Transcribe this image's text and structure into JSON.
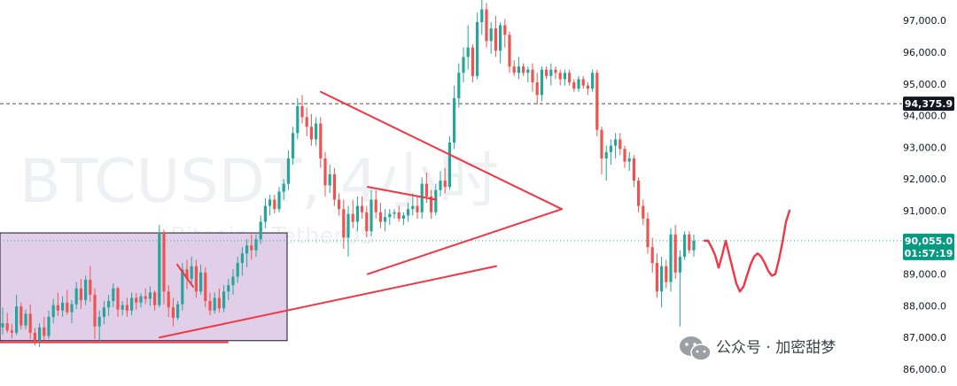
{
  "chart_data": {
    "type": "candlestick",
    "symbol_watermark": "BTCUSDT, 4小时",
    "symbol_subtitle": "Bitcoin / TetherUS",
    "y_axis": {
      "ticks": [
        "97,000.0",
        "96,000.0",
        "95,000.0",
        "94,000.0",
        "93,000.0",
        "92,000.0",
        "91,000.0",
        "89,000.0",
        "88,000.0",
        "87,000.0",
        "86,000.0"
      ],
      "range": [
        85750,
        97600
      ]
    },
    "levels": [
      {
        "label": "94,375.9",
        "value": 94375.9,
        "style": "dashed",
        "color": "#131722"
      },
      {
        "label": "90,055.0",
        "sub_label": "01:57:19",
        "value": 90055.0,
        "style": "dotted",
        "color": "#22ab94"
      }
    ],
    "candles_ohlc": [
      [
        87320,
        87950,
        87100,
        87450
      ],
      [
        87450,
        87780,
        87150,
        87220
      ],
      [
        87220,
        87420,
        86980,
        87150
      ],
      [
        87150,
        88350,
        87080,
        87980
      ],
      [
        87980,
        88100,
        87250,
        87380
      ],
      [
        87380,
        87880,
        87250,
        87750
      ],
      [
        87750,
        88050,
        86950,
        87150
      ],
      [
        87150,
        87300,
        86750,
        86900
      ],
      [
        86900,
        87450,
        86700,
        87320
      ],
      [
        87320,
        87650,
        86900,
        87050
      ],
      [
        87050,
        87850,
        86950,
        87650
      ],
      [
        87650,
        88220,
        87450,
        88020
      ],
      [
        88020,
        88420,
        87680,
        87850
      ],
      [
        87850,
        88300,
        87650,
        88100
      ],
      [
        88100,
        88500,
        87720,
        87800
      ],
      [
        87800,
        88180,
        87450,
        88050
      ],
      [
        88050,
        88750,
        87900,
        88550
      ],
      [
        88550,
        88850,
        87900,
        88180
      ],
      [
        88180,
        88950,
        88020,
        88820
      ],
      [
        88820,
        89250,
        88120,
        88350
      ],
      [
        88350,
        88550,
        86950,
        87350
      ],
      [
        87350,
        87850,
        86880,
        87650
      ],
      [
        87650,
        88150,
        87420,
        87950
      ],
      [
        87950,
        88350,
        87680,
        88150
      ],
      [
        88150,
        88720,
        87950,
        88550
      ],
      [
        88550,
        88600,
        87650,
        87880
      ],
      [
        87880,
        88150,
        87700,
        88020
      ],
      [
        88020,
        88250,
        87650,
        87850
      ],
      [
        87850,
        88420,
        87700,
        88250
      ],
      [
        88250,
        88400,
        87880,
        88100
      ],
      [
        88100,
        88400,
        87950,
        88300
      ],
      [
        88300,
        88550,
        88050,
        88220
      ],
      [
        88220,
        88620,
        88000,
        88420
      ],
      [
        88420,
        88480,
        87850,
        88020
      ],
      [
        88020,
        90550,
        87950,
        90300
      ],
      [
        90300,
        90400,
        88050,
        88450
      ],
      [
        88450,
        88650,
        87650,
        87950
      ],
      [
        87950,
        88250,
        87350,
        87620
      ],
      [
        87620,
        88150,
        87550,
        88050
      ],
      [
        88050,
        89350,
        87850,
        89150
      ],
      [
        89150,
        89450,
        88520,
        88850
      ],
      [
        88850,
        89550,
        88620,
        89250
      ],
      [
        89250,
        89450,
        88250,
        88450
      ],
      [
        88450,
        89300,
        88350,
        89050
      ],
      [
        89050,
        89220,
        87950,
        88150
      ],
      [
        88150,
        88420,
        87700,
        87850
      ],
      [
        87850,
        88420,
        87750,
        88250
      ],
      [
        88250,
        88550,
        87780,
        87920
      ],
      [
        87920,
        88650,
        87800,
        88450
      ],
      [
        88450,
        88850,
        88180,
        88650
      ],
      [
        88650,
        89150,
        88350,
        88920
      ],
      [
        88920,
        89550,
        88720,
        89350
      ],
      [
        89350,
        89850,
        88950,
        89650
      ],
      [
        89650,
        90100,
        89220,
        89900
      ],
      [
        89900,
        90250,
        89450,
        89750
      ],
      [
        89750,
        90250,
        89550,
        90100
      ],
      [
        90100,
        90850,
        89950,
        90650
      ],
      [
        90650,
        91400,
        90450,
        91150
      ],
      [
        91150,
        91500,
        90850,
        91350
      ],
      [
        91350,
        91500,
        90920,
        91050
      ],
      [
        91050,
        91750,
        90950,
        91600
      ],
      [
        91600,
        92000,
        91350,
        91850
      ],
      [
        91850,
        92900,
        91650,
        92650
      ],
      [
        92650,
        93650,
        92450,
        93450
      ],
      [
        93450,
        94550,
        93250,
        94300
      ],
      [
        94300,
        94650,
        93750,
        93950
      ],
      [
        93950,
        94250,
        93350,
        93650
      ],
      [
        93650,
        94050,
        93050,
        93250
      ],
      [
        93250,
        93950,
        93050,
        93750
      ],
      [
        93750,
        93950,
        92350,
        92650
      ],
      [
        92650,
        92850,
        91450,
        91800
      ],
      [
        91800,
        92450,
        91550,
        92150
      ],
      [
        92150,
        92350,
        91150,
        91350
      ],
      [
        91350,
        91550,
        90850,
        91050
      ],
      [
        91050,
        91350,
        89800,
        90150
      ],
      [
        90150,
        91150,
        89550,
        90900
      ],
      [
        90900,
        91350,
        90450,
        90650
      ],
      [
        90650,
        91450,
        90350,
        91150
      ],
      [
        91150,
        91450,
        90750,
        90950
      ],
      [
        90950,
        91150,
        90150,
        90350
      ],
      [
        90350,
        91650,
        90200,
        91350
      ],
      [
        91350,
        91650,
        90750,
        90950
      ],
      [
        90950,
        91250,
        90450,
        90650
      ],
      [
        90650,
        91050,
        90350,
        90800
      ],
      [
        90800,
        91050,
        90550,
        90900
      ],
      [
        90900,
        91050,
        90750,
        90950
      ],
      [
        90950,
        91150,
        90650,
        90750
      ],
      [
        90750,
        90950,
        90550,
        90850
      ],
      [
        90850,
        91250,
        90650,
        91050
      ],
      [
        91050,
        91550,
        90850,
        91150
      ],
      [
        91150,
        91450,
        90750,
        90950
      ],
      [
        90950,
        92050,
        90750,
        91850
      ],
      [
        91850,
        92200,
        91250,
        91450
      ],
      [
        91450,
        91650,
        90750,
        90950
      ],
      [
        90950,
        91850,
        90850,
        91650
      ],
      [
        91650,
        92250,
        91450,
        91950
      ],
      [
        91950,
        92350,
        91550,
        91750
      ],
      [
        91750,
        93350,
        91650,
        93150
      ],
      [
        93150,
        94950,
        92950,
        94550
      ],
      [
        94550,
        95650,
        94250,
        95350
      ],
      [
        95350,
        96150,
        95050,
        95850
      ],
      [
        95850,
        96850,
        95450,
        96150
      ],
      [
        96150,
        96250,
        95050,
        95250
      ],
      [
        95250,
        97250,
        95150,
        96950
      ],
      [
        96950,
        97650,
        96550,
        97350
      ],
      [
        97350,
        97550,
        96150,
        96350
      ],
      [
        96350,
        96950,
        95950,
        96750
      ],
      [
        96750,
        97150,
        95850,
        96050
      ],
      [
        96050,
        96950,
        95650,
        96850
      ],
      [
        96850,
        97050,
        96150,
        96550
      ],
      [
        96550,
        96650,
        95350,
        95550
      ],
      [
        95550,
        95750,
        95250,
        95350
      ],
      [
        95350,
        95850,
        95150,
        95550
      ],
      [
        95550,
        95650,
        95250,
        95350
      ],
      [
        95350,
        95550,
        95050,
        95450
      ],
      [
        95450,
        95650,
        94750,
        95050
      ],
      [
        95050,
        95350,
        94350,
        94650
      ],
      [
        94650,
        95550,
        94450,
        95450
      ],
      [
        95450,
        95550,
        95150,
        95250
      ],
      [
        95250,
        95650,
        94950,
        95450
      ],
      [
        95450,
        95550,
        95150,
        95350
      ],
      [
        95350,
        95450,
        94950,
        95150
      ],
      [
        95150,
        95450,
        94950,
        95350
      ],
      [
        95350,
        95450,
        94950,
        95050
      ],
      [
        95050,
        95150,
        94750,
        94850
      ],
      [
        94850,
        95250,
        94750,
        95150
      ],
      [
        95150,
        95250,
        94850,
        94950
      ],
      [
        94950,
        95050,
        94650,
        94850
      ],
      [
        94850,
        95450,
        94750,
        95350
      ],
      [
        95350,
        95450,
        93350,
        93550
      ],
      [
        93550,
        93650,
        92150,
        92650
      ],
      [
        92650,
        93050,
        91950,
        92850
      ],
      [
        92850,
        93250,
        92450,
        93050
      ],
      [
        93050,
        93450,
        92650,
        93250
      ],
      [
        93250,
        93450,
        92750,
        92950
      ],
      [
        92950,
        93050,
        92350,
        92550
      ],
      [
        92550,
        92850,
        92250,
        92650
      ],
      [
        92650,
        92750,
        91750,
        91950
      ],
      [
        91950,
        92050,
        90950,
        91150
      ],
      [
        91150,
        91350,
        90550,
        90750
      ],
      [
        90750,
        90950,
        89650,
        89850
      ],
      [
        89850,
        90150,
        89050,
        89350
      ],
      [
        89350,
        89650,
        88250,
        88450
      ],
      [
        88450,
        89550,
        87950,
        89250
      ],
      [
        89250,
        89450,
        88550,
        88750
      ],
      [
        88750,
        90450,
        88450,
        90250
      ],
      [
        90250,
        90550,
        88850,
        89050
      ],
      [
        89050,
        89750,
        87350,
        89550
      ],
      [
        89550,
        90350,
        89450,
        90250
      ],
      [
        90250,
        90350,
        89650,
        89750
      ],
      [
        89750,
        90250,
        89550,
        90055
      ]
    ],
    "projection_path": [
      90055,
      90050,
      89850,
      89600,
      89200,
      89600,
      90050,
      89600,
      89150,
      88700,
      88450,
      88600,
      88950,
      89300,
      89550,
      89650,
      89550,
      89350,
      89100,
      88950,
      89000,
      89450,
      90000,
      90650,
      91000
    ],
    "triangle_lines": [
      {
        "p1": [
          94750
        ],
        "p2": [
          91050
        ]
      },
      {
        "p1": [
          89000
        ],
        "p2": [
          91050
        ]
      },
      {
        "p1": [
          91750
        ],
        "p2": [
          91350
        ]
      },
      {
        "p1": [
          87000
        ],
        "p2": [
          89250
        ]
      },
      {
        "p1": [
          89300
        ],
        "p2": [
          88600
        ]
      },
      {
        "p1": [
          86850
        ],
        "p2": [
          86850
        ]
      }
    ],
    "range_box": {
      "top": 90300,
      "bottom": 86900
    },
    "credit": "公众号 · 加密甜梦"
  }
}
